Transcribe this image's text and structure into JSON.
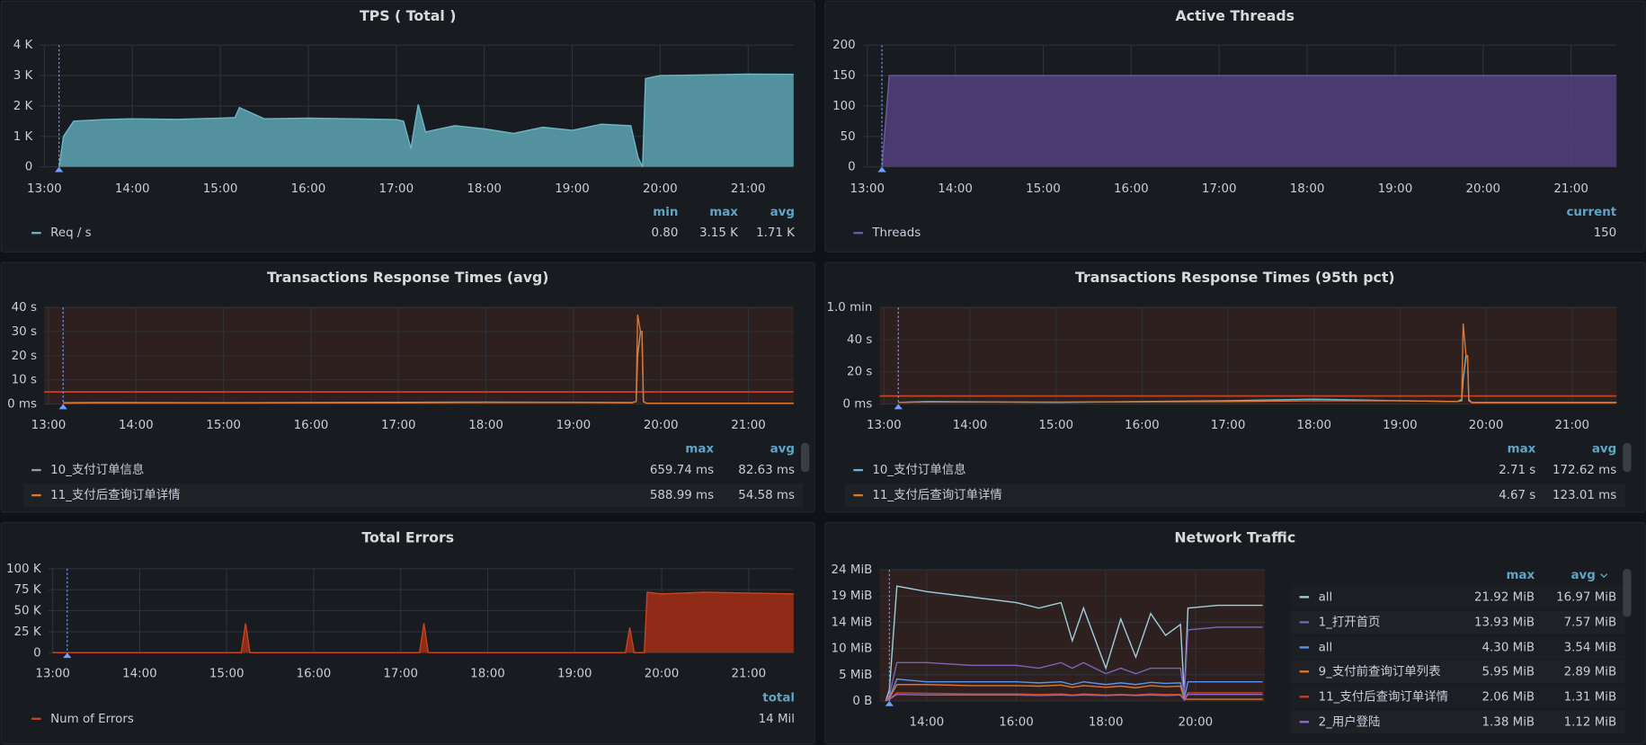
{
  "chart_data": [
    {
      "type": "area",
      "title": "TPS ( Total )",
      "x": [
        "13:10",
        "13:13",
        "13:20",
        "13:40",
        "14:00",
        "14:30",
        "15:00",
        "15:10",
        "15:13",
        "15:30",
        "16:00",
        "16:30",
        "17:00",
        "17:05",
        "17:10",
        "17:12",
        "17:15",
        "17:20",
        "17:40",
        "18:00",
        "18:20",
        "18:40",
        "19:00",
        "19:20",
        "19:40",
        "19:45",
        "19:48",
        "19:50",
        "20:00",
        "20:30",
        "21:00",
        "21:31"
      ],
      "series": [
        {
          "name": "Req / s",
          "color": "#6cb7c6",
          "fill": "#5a9fad",
          "values": [
            0,
            1000,
            1500,
            1550,
            1580,
            1560,
            1600,
            1620,
            1950,
            1580,
            1600,
            1580,
            1550,
            1500,
            600,
            1200,
            2050,
            1150,
            1350,
            1250,
            1100,
            1300,
            1200,
            1400,
            1350,
            300,
            0,
            2900,
            3000,
            3020,
            3050,
            3040
          ],
          "legend_values": [
            "0.80",
            "3.15 K",
            "1.71 K"
          ]
        }
      ],
      "xlim": [
        "12:57",
        "21:31"
      ],
      "xticks": [
        "13:00",
        "14:00",
        "15:00",
        "16:00",
        "17:00",
        "18:00",
        "19:00",
        "20:00",
        "21:00"
      ],
      "ylim": [
        0,
        4000
      ],
      "yticks": [
        0,
        {
          "value": 1000,
          "label": "1 K"
        },
        {
          "value": 2000,
          "label": "2 K"
        },
        {
          "value": 3000,
          "label": "3 K"
        },
        {
          "value": 4000,
          "label": "4 K"
        }
      ],
      "annotation_x": "13:10",
      "legend_columns": [
        "min",
        "max",
        "avg"
      ]
    },
    {
      "type": "area",
      "title": "Active Threads",
      "x": [
        "13:10",
        "13:15",
        "21:31"
      ],
      "series": [
        {
          "name": "Threads",
          "color": "#7059a8",
          "fill": "#4f3f78",
          "values": [
            0,
            150,
            150
          ],
          "legend_values": [
            "150"
          ]
        }
      ],
      "xlim": [
        "12:57",
        "21:31"
      ],
      "xticks": [
        "13:00",
        "14:00",
        "15:00",
        "16:00",
        "17:00",
        "18:00",
        "19:00",
        "20:00",
        "21:00"
      ],
      "ylim": [
        0,
        200
      ],
      "yticks": [
        0,
        50,
        100,
        150,
        200
      ],
      "annotation_x": "13:10",
      "legend_columns": [
        "current"
      ]
    },
    {
      "type": "line",
      "title": "Transactions Response Times (avg)",
      "x": [
        "13:10",
        "13:30",
        "15:00",
        "17:00",
        "18:00",
        "19:00",
        "19:40",
        "19:43",
        "19:44",
        "19:46",
        "19:47",
        "19:48",
        "19:50",
        "21:00",
        "21:31"
      ],
      "series": [
        {
          "name": "10_支付订单信息",
          "color": "#9a9a9a",
          "values": [
            0.5,
            0.6,
            0.5,
            0.7,
            0.8,
            0.7,
            0.6,
            1,
            20,
            30,
            30,
            1,
            0.3,
            0.3,
            0.3
          ],
          "legend_values": [
            "659.74 ms",
            "82.63 ms"
          ]
        },
        {
          "name": "11_支付后查询订单详情",
          "color": "#e0752d",
          "values": [
            0.3,
            0.4,
            0.4,
            0.5,
            0.6,
            0.6,
            0.5,
            1,
            37,
            30,
            30,
            1,
            0.3,
            0.3,
            0.3
          ],
          "legend_values": [
            "588.99 ms",
            "54.58 ms"
          ]
        }
      ],
      "xlim": [
        "12:57",
        "21:31"
      ],
      "xticks": [
        "13:00",
        "14:00",
        "15:00",
        "16:00",
        "17:00",
        "18:00",
        "19:00",
        "20:00",
        "21:00"
      ],
      "ylim": [
        0,
        40
      ],
      "yticks": [
        {
          "value": 0,
          "label": "0 ms"
        },
        {
          "value": 10,
          "label": "10 s"
        },
        {
          "value": 20,
          "label": "20 s"
        },
        {
          "value": 30,
          "label": "30 s"
        },
        {
          "value": 40,
          "label": "40 s"
        }
      ],
      "threshold": 5,
      "threshold_color": "#c4441f",
      "annotation_x": "13:10",
      "legend_columns": [
        "max",
        "avg"
      ]
    },
    {
      "type": "line",
      "title": "Transactions Response Times (95th pct)",
      "x": [
        "13:10",
        "13:30",
        "15:00",
        "17:00",
        "18:00",
        "19:00",
        "19:40",
        "19:43",
        "19:44",
        "19:46",
        "19:47",
        "19:48",
        "19:50",
        "21:00",
        "21:31"
      ],
      "series": [
        {
          "name": "10_支付订单信息",
          "color": "#6fb3d8",
          "values": [
            1,
            1.5,
            1,
            2,
            3,
            2,
            1.5,
            2,
            15,
            30,
            30,
            2,
            1,
            1,
            1
          ],
          "legend_values": [
            "2.71 s",
            "172.62 ms"
          ]
        },
        {
          "name": "11_支付后查询订单详情",
          "color": "#e0752d",
          "values": [
            1,
            1.2,
            1.2,
            1.5,
            2,
            2,
            1.5,
            3,
            50,
            30,
            30,
            3,
            0.8,
            0.8,
            0.8
          ],
          "legend_values": [
            "4.67 s",
            "123.01 ms"
          ]
        }
      ],
      "xlim": [
        "12:57",
        "21:31"
      ],
      "xticks": [
        "13:00",
        "14:00",
        "15:00",
        "16:00",
        "17:00",
        "18:00",
        "19:00",
        "20:00",
        "21:00"
      ],
      "ylim": [
        0,
        60
      ],
      "yticks": [
        {
          "value": 0,
          "label": "0 ms"
        },
        {
          "value": 20,
          "label": "20 s"
        },
        {
          "value": 40,
          "label": "40 s"
        },
        {
          "value": 60,
          "label": "1.0 min"
        }
      ],
      "threshold": 5,
      "threshold_color": "#c4441f",
      "annotation_x": "13:10",
      "legend_columns": [
        "max",
        "avg"
      ]
    },
    {
      "type": "area",
      "title": "Total Errors",
      "x": [
        "13:00",
        "15:10",
        "15:13",
        "15:16",
        "17:13",
        "17:16",
        "17:19",
        "19:35",
        "19:38",
        "19:41",
        "19:48",
        "19:50",
        "20:00",
        "20:30",
        "21:00",
        "21:31"
      ],
      "series": [
        {
          "name": "Num of Errors",
          "color": "#c4441f",
          "fill": "#9d2d16",
          "values": [
            0,
            0,
            35000,
            0,
            0,
            35000,
            0,
            0,
            30000,
            0,
            0,
            72000,
            70000,
            72000,
            71000,
            70000
          ],
          "legend_values": [
            "14 Mil"
          ]
        }
      ],
      "xlim": [
        "12:57",
        "21:31"
      ],
      "xticks": [
        "13:00",
        "14:00",
        "15:00",
        "16:00",
        "17:00",
        "18:00",
        "19:00",
        "20:00",
        "21:00"
      ],
      "ylim": [
        0,
        100000
      ],
      "yticks": [
        0,
        {
          "value": 25000,
          "label": "25 K"
        },
        {
          "value": 50000,
          "label": "50 K"
        },
        {
          "value": 75000,
          "label": "75 K"
        },
        {
          "value": 100000,
          "label": "100 K"
        }
      ],
      "annotation_x": "13:10",
      "legend_columns": [
        "total"
      ]
    },
    {
      "type": "line",
      "title": "Network Traffic",
      "x": [
        "13:05",
        "13:10",
        "13:20",
        "14:00",
        "15:00",
        "16:00",
        "16:30",
        "17:00",
        "17:15",
        "17:30",
        "18:00",
        "18:20",
        "18:40",
        "19:00",
        "19:20",
        "19:40",
        "19:45",
        "19:50",
        "20:30",
        "21:30"
      ],
      "series": [
        {
          "name": "all",
          "color": "#9ecfdc",
          "values": [
            0,
            2,
            21,
            20,
            19,
            18,
            17,
            18,
            11,
            17,
            6,
            15,
            8,
            16,
            12,
            14,
            1,
            17,
            17.5,
            17.5
          ],
          "legend_values": [
            "21.92 MiB",
            "16.97 MiB"
          ]
        },
        {
          "name": "1_打开首页",
          "color": "#7b62b8",
          "values": [
            0,
            1,
            7,
            7,
            6.5,
            6.5,
            6,
            7,
            6,
            7,
            5,
            6,
            5,
            6,
            6,
            6,
            1,
            13,
            13.5,
            13.5
          ],
          "legend_values": [
            "13.93 MiB",
            "7.57 MiB"
          ]
        },
        {
          "name": "all",
          "color": "#5794f2",
          "values": [
            0,
            0.5,
            4,
            3.5,
            3.5,
            3.5,
            3.3,
            3.5,
            3,
            3.5,
            3,
            3.3,
            3,
            3.4,
            3.2,
            3.3,
            0.5,
            3.5,
            3.5,
            3.5
          ],
          "legend_values": [
            "4.30 MiB",
            "3.54 MiB"
          ]
        },
        {
          "name": "9_支付前查询订单列表",
          "color": "#e0752d",
          "values": [
            0,
            0.5,
            3,
            3,
            2.8,
            2.8,
            2.7,
            2.9,
            2.5,
            2.8,
            2.5,
            2.7,
            2.4,
            2.8,
            2.6,
            2.7,
            0.3,
            0.3,
            0.3,
            0.3
          ],
          "legend_values": [
            "5.95 MiB",
            "2.89 MiB"
          ]
        },
        {
          "name": "11_支付后查询订单详情",
          "color": "#c4441f",
          "values": [
            0,
            0.3,
            1.5,
            1.4,
            1.3,
            1.3,
            1.2,
            1.3,
            1.1,
            1.3,
            1.1,
            1.2,
            1.1,
            1.3,
            1.2,
            1.2,
            0.2,
            1.5,
            1.5,
            1.5
          ],
          "legend_values": [
            "2.06 MiB",
            "1.31 MiB"
          ]
        },
        {
          "name": "2_用户登陆",
          "color": "#8f6ad0",
          "values": [
            0,
            0.3,
            1.2,
            1.1,
            1.1,
            1.1,
            1,
            1.1,
            1,
            1.1,
            1,
            1.1,
            1,
            1.1,
            1,
            1.1,
            0.2,
            1.2,
            1.2,
            1.2
          ],
          "legend_values": [
            "1.38 MiB",
            "1.12 MiB"
          ]
        }
      ],
      "xlim": [
        "12:57",
        "21:33"
      ],
      "xticks": [
        "14:00",
        "16:00",
        "18:00",
        "20:00"
      ],
      "ylim": [
        0,
        24
      ],
      "yticks": [
        {
          "value": 0,
          "label": "0 B"
        },
        {
          "value": 4.8,
          "label": "5 MiB"
        },
        {
          "value": 9.6,
          "label": "10 MiB"
        },
        {
          "value": 14.4,
          "label": "14 MiB"
        },
        {
          "value": 19.2,
          "label": "19 MiB"
        },
        {
          "value": 24,
          "label": "24 MiB"
        }
      ],
      "annotation_x": "13:10",
      "legend_columns": [
        "max",
        "avg"
      ]
    }
  ]
}
